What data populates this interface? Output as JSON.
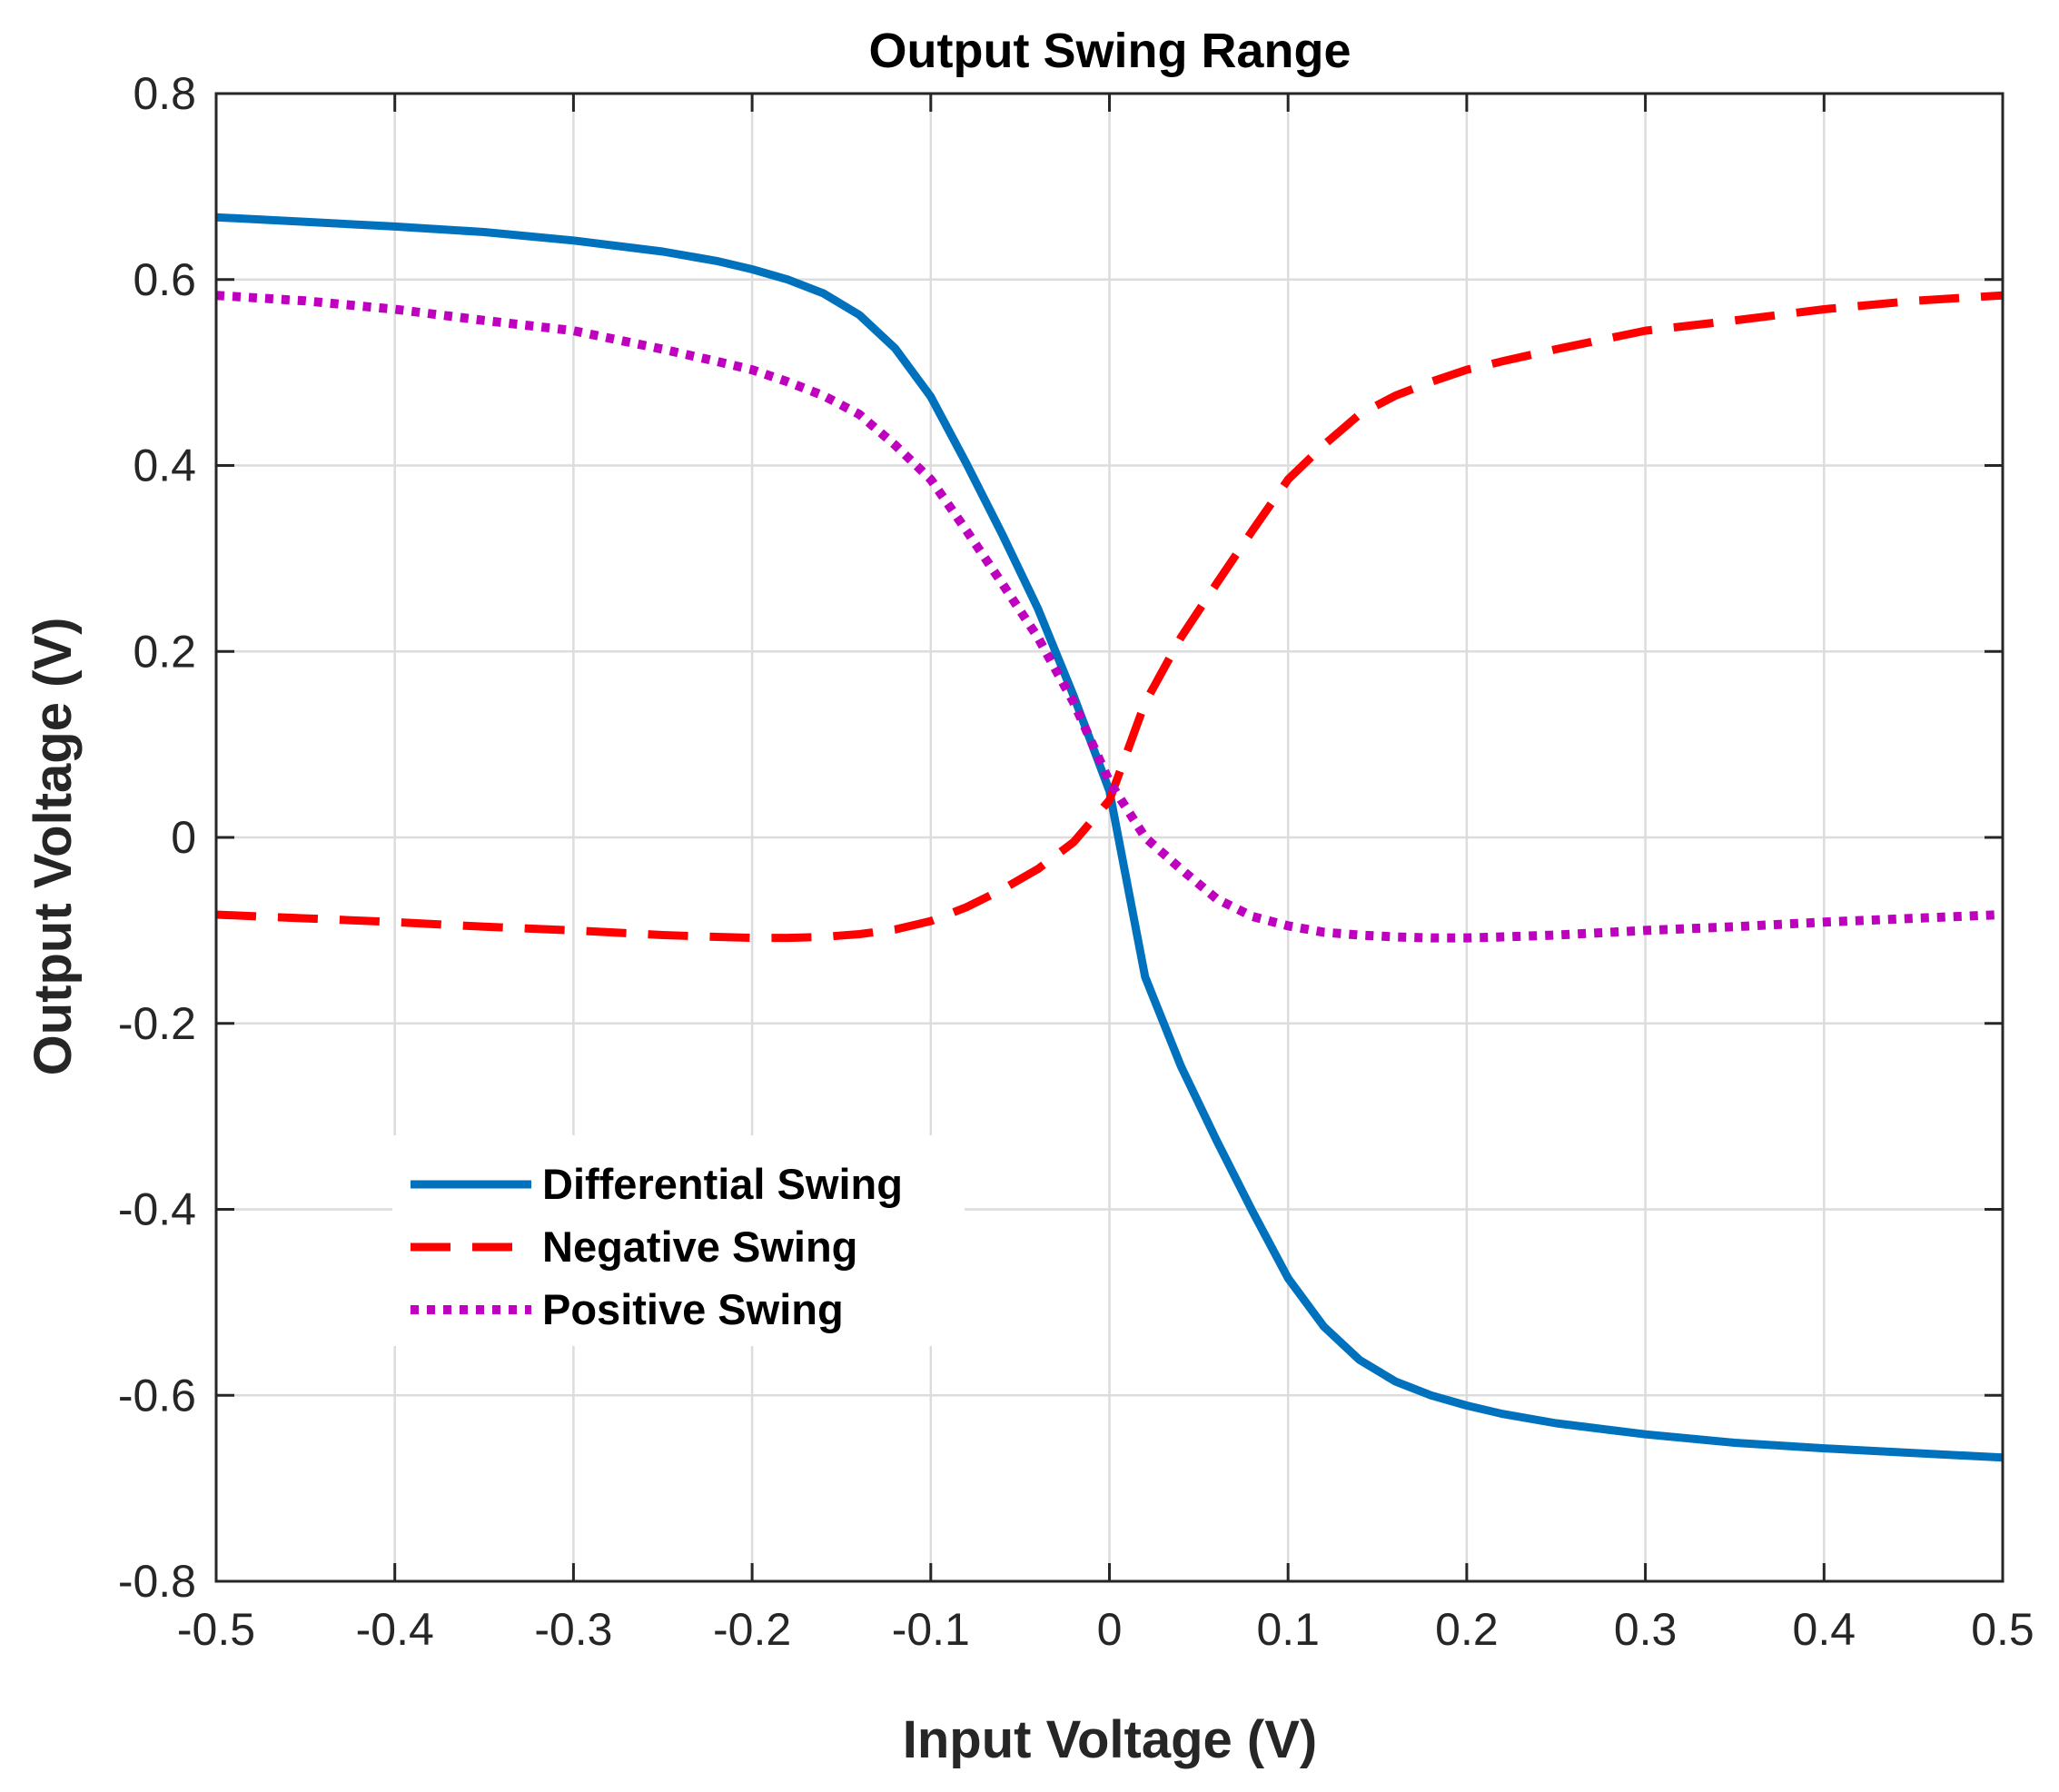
{
  "chart_data": {
    "type": "line",
    "title": "Output Swing Range",
    "xlabel": "Input Voltage (V)",
    "ylabel": "Output Voltage (V)",
    "xlim": [
      -0.5,
      0.5
    ],
    "ylim": [
      -0.8,
      0.8
    ],
    "xticks": [
      -0.5,
      -0.4,
      -0.3,
      -0.2,
      -0.1,
      0,
      0.1,
      0.2,
      0.3,
      0.4,
      0.5
    ],
    "xtick_labels": [
      "-0.5",
      "-0.4",
      "-0.3",
      "-0.2",
      "-0.1",
      "0",
      "0.1",
      "0.2",
      "0.3",
      "0.4",
      "0.5"
    ],
    "yticks": [
      0.8,
      0.6,
      0.4,
      0.2,
      0,
      -0.2,
      -0.4,
      -0.6,
      -0.8
    ],
    "ytick_labels": [
      "0.8",
      "0.6",
      "0.4",
      "0.2",
      "0",
      "-0.2",
      "-0.4",
      "-0.6",
      "-0.8"
    ],
    "grid": true,
    "legend_position": "lower-left",
    "x": [
      -0.5,
      -0.45,
      -0.4,
      -0.35,
      -0.3,
      -0.25,
      -0.22,
      -0.2,
      -0.18,
      -0.16,
      -0.14,
      -0.12,
      -0.1,
      -0.08,
      -0.06,
      -0.04,
      -0.02,
      0,
      0.02,
      0.04,
      0.06,
      0.08,
      0.1,
      0.12,
      0.14,
      0.16,
      0.18,
      0.2,
      0.22,
      0.25,
      0.3,
      0.35,
      0.4,
      0.45,
      0.5
    ],
    "series": [
      {
        "name": "Differential Swing",
        "color": "#0072bd",
        "style": "solid",
        "values": [
          0.667,
          0.662,
          0.657,
          0.651,
          0.642,
          0.63,
          0.62,
          0.611,
          0.6,
          0.585,
          0.562,
          0.526,
          0.474,
          0.402,
          0.326,
          0.246,
          0.152,
          0.05,
          -0.15,
          -0.246,
          -0.326,
          -0.402,
          -0.474,
          -0.526,
          -0.562,
          -0.585,
          -0.6,
          -0.611,
          -0.62,
          -0.63,
          -0.642,
          -0.651,
          -0.657,
          -0.662,
          -0.667
        ]
      },
      {
        "name": "Negative Swing",
        "color": "#ff0000",
        "style": "dashed",
        "values": [
          -0.083,
          -0.087,
          -0.091,
          -0.096,
          -0.1,
          -0.105,
          -0.107,
          -0.108,
          -0.108,
          -0.107,
          -0.104,
          -0.099,
          -0.09,
          -0.075,
          -0.056,
          -0.034,
          -0.005,
          0.04,
          0.145,
          0.215,
          0.273,
          0.33,
          0.385,
          0.422,
          0.455,
          0.475,
          0.49,
          0.503,
          0.512,
          0.525,
          0.545,
          0.556,
          0.568,
          0.577,
          0.583
        ]
      },
      {
        "name": "Positive Swing",
        "color": "#bf00bf",
        "style": "dotted",
        "values": [
          0.583,
          0.577,
          0.568,
          0.556,
          0.545,
          0.525,
          0.512,
          0.503,
          0.49,
          0.475,
          0.455,
          0.422,
          0.385,
          0.33,
          0.273,
          0.215,
          0.145,
          0.06,
          0.0,
          -0.034,
          -0.066,
          -0.085,
          -0.095,
          -0.102,
          -0.105,
          -0.107,
          -0.108,
          -0.108,
          -0.107,
          -0.105,
          -0.1,
          -0.096,
          -0.091,
          -0.087,
          -0.083
        ]
      }
    ]
  }
}
